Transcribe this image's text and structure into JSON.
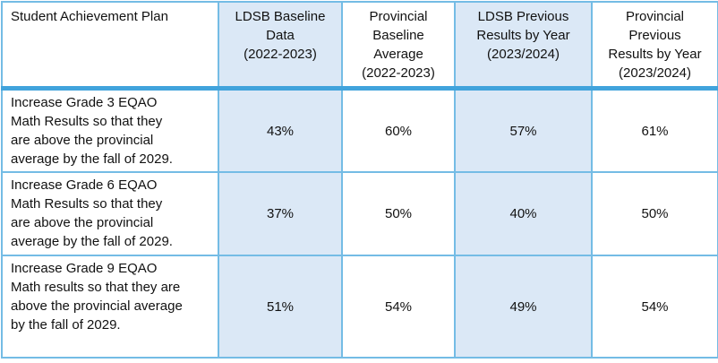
{
  "colors": {
    "border": "#74bce5",
    "border_strong": "#41a3dc",
    "shade": "#dbe8f6",
    "text": "#111111",
    "background": "#ffffff"
  },
  "table": {
    "header": {
      "plan_label": "Student Achievement Plan",
      "columns": [
        "LDSB Baseline\nData\n(2022-2023)",
        "Provincial\nBaseline\nAverage\n(2022-2023)",
        "LDSB Previous\nResults by Year\n(2023/2024)",
        "Provincial\nPrevious\nResults by Year\n(2023/2024)"
      ]
    },
    "rows": [
      {
        "goal": "Increase Grade 3 EQAO\nMath Results so that they\nare above the provincial\naverage by the fall of 2029.",
        "values": [
          "43%",
          "60%",
          "57%",
          "61%"
        ]
      },
      {
        "goal": "Increase Grade 6 EQAO\nMath Results so that they\nare above the provincial\naverage by the fall of 2029.",
        "values": [
          "37%",
          "50%",
          "40%",
          "50%"
        ]
      },
      {
        "goal": "Increase Grade 9 EQAO\nMath results so that they are\nabove the provincial average\nby the fall of 2029.",
        "values": [
          "51%",
          "54%",
          "49%",
          "54%"
        ]
      }
    ]
  }
}
